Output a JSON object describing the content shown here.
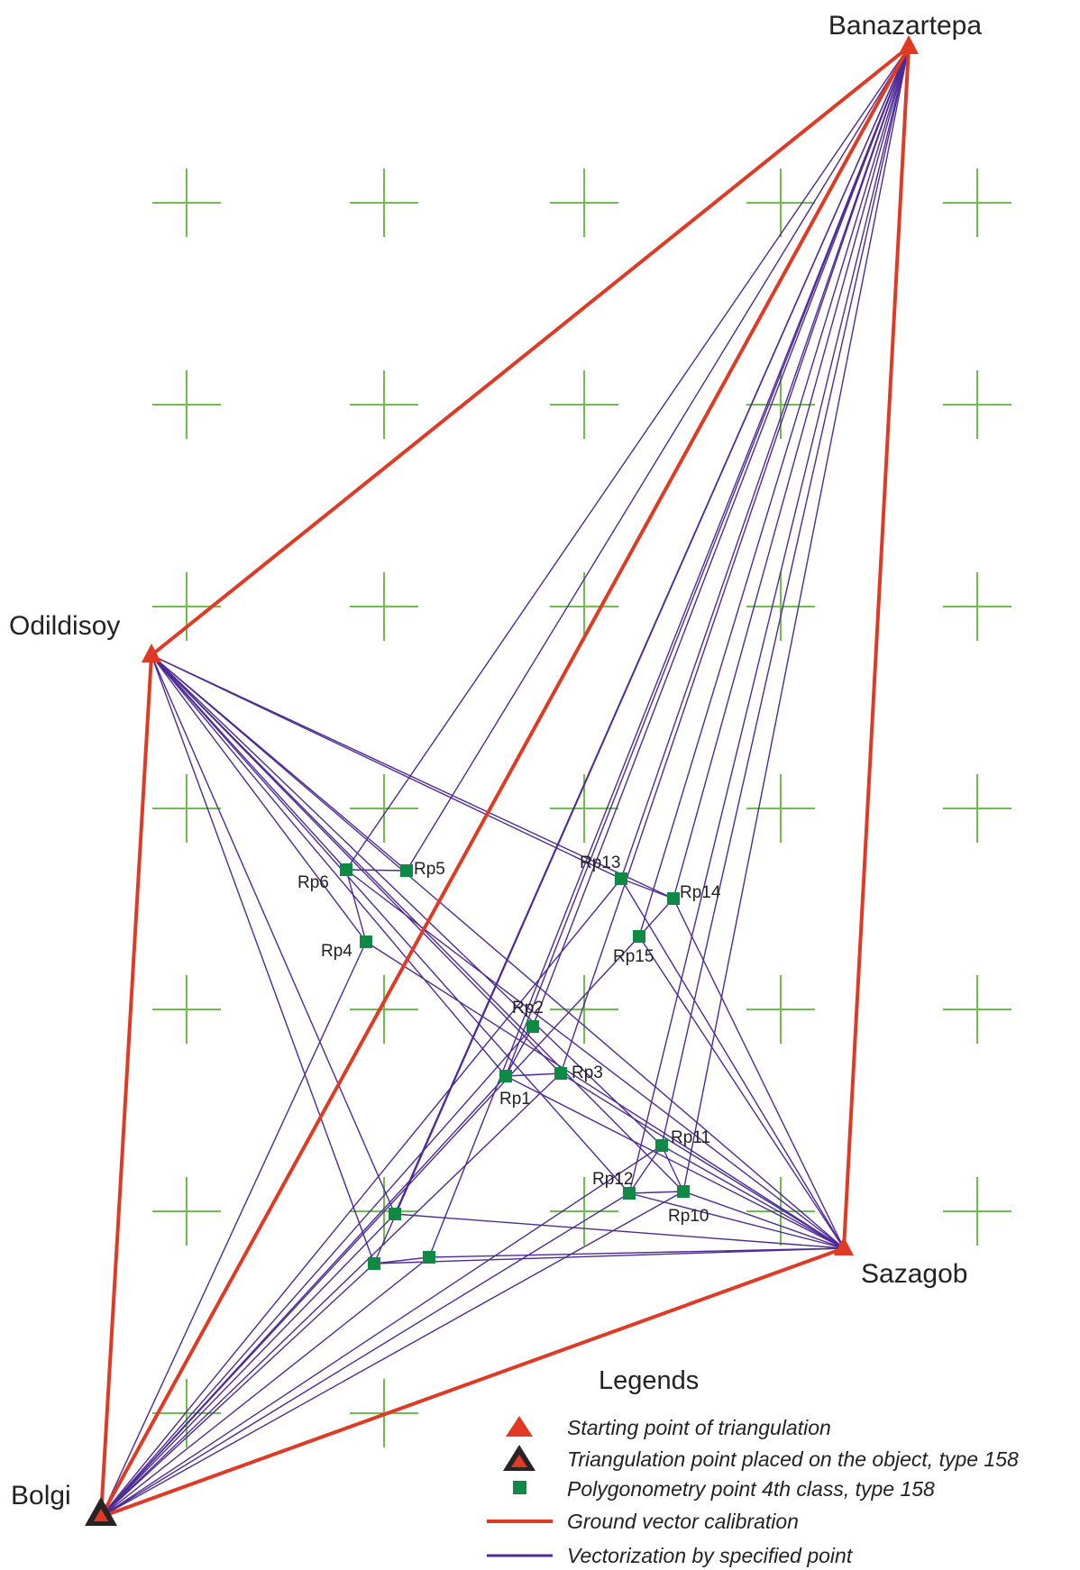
{
  "colors": {
    "calibration_line": "#e03a24",
    "vector_line": "#4e2a96",
    "grid_cross": "#6cc04a",
    "polygon_point": "#0f8a45",
    "start_triangle": "#e03a24",
    "object_triangle_outline": "#2a2323"
  },
  "stations": [
    {
      "id": "banazartepa",
      "label": "Banazartepa",
      "kind": "starting-point"
    },
    {
      "id": "odildisoy",
      "label": "Odildisoy",
      "kind": "starting-point"
    },
    {
      "id": "sazagob",
      "label": "Sazagob",
      "kind": "starting-point"
    },
    {
      "id": "bolgi",
      "label": "Bolgi",
      "kind": "object-point"
    }
  ],
  "points": [
    {
      "id": "rp1",
      "label": "Rp1"
    },
    {
      "id": "rp2",
      "label": "Rp2"
    },
    {
      "id": "rp3",
      "label": "Rp3"
    },
    {
      "id": "rp4",
      "label": "Rp4"
    },
    {
      "id": "rp5",
      "label": "Rp5"
    },
    {
      "id": "rp6",
      "label": "Rp6"
    },
    {
      "id": "rp10",
      "label": "Rp10"
    },
    {
      "id": "rp11",
      "label": "Rp11"
    },
    {
      "id": "rp12",
      "label": "Rp12"
    },
    {
      "id": "rp13",
      "label": "Rp13"
    },
    {
      "id": "rp14",
      "label": "Rp14"
    },
    {
      "id": "rp15",
      "label": "Rp15"
    },
    {
      "id": "u1",
      "label": ""
    },
    {
      "id": "u2",
      "label": ""
    },
    {
      "id": "u3",
      "label": ""
    }
  ],
  "legend": {
    "title": "Legends",
    "items": [
      {
        "symbol": "starting-triangle",
        "label": "Starting point of triangulation"
      },
      {
        "symbol": "object-triangle",
        "label": "Triangulation point placed on the object, type 158"
      },
      {
        "symbol": "green-square",
        "label": "Polygonometry point 4th class, type 158"
      },
      {
        "symbol": "red-line",
        "label": "Ground vector calibration"
      },
      {
        "symbol": "purple-line",
        "label": "Vectorization by specified point"
      }
    ]
  }
}
